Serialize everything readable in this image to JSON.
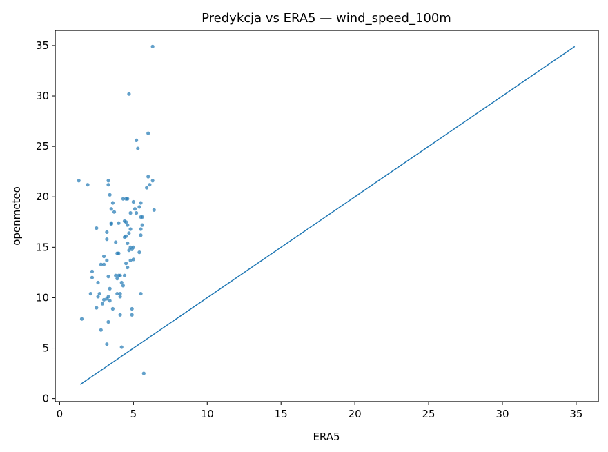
{
  "chart_data": {
    "type": "scatter",
    "title": "Predykcja vs ERA5 — wind_speed_100m",
    "xlabel": "ERA5",
    "ylabel": "openmeteo",
    "xlim": [
      -0.3,
      36.5
    ],
    "ylim": [
      -0.3,
      36.5
    ],
    "xticks": [
      0,
      5,
      10,
      15,
      20,
      25,
      30,
      35
    ],
    "yticks": [
      0,
      5,
      10,
      15,
      20,
      25,
      30,
      35
    ],
    "grid": false,
    "point_color": "#1f77b4",
    "line_color": "#1f77b4",
    "reference_line": {
      "x": [
        1.4,
        34.9
      ],
      "y": [
        1.4,
        34.9
      ]
    },
    "points": [
      [
        6.3,
        34.9
      ],
      [
        4.7,
        30.2
      ],
      [
        6.0,
        26.3
      ],
      [
        5.2,
        25.6
      ],
      [
        5.3,
        24.8
      ],
      [
        6.0,
        22.0
      ],
      [
        6.3,
        21.6
      ],
      [
        6.1,
        21.2
      ],
      [
        5.9,
        20.9
      ],
      [
        1.3,
        21.6
      ],
      [
        1.9,
        21.2
      ],
      [
        3.3,
        21.6
      ],
      [
        3.3,
        21.2
      ],
      [
        3.4,
        20.2
      ],
      [
        4.3,
        19.8
      ],
      [
        4.5,
        19.8
      ],
      [
        4.6,
        19.8
      ],
      [
        5.0,
        19.5
      ],
      [
        5.5,
        19.4
      ],
      [
        5.4,
        19.0
      ],
      [
        3.6,
        19.4
      ],
      [
        3.5,
        18.8
      ],
      [
        3.7,
        18.5
      ],
      [
        4.8,
        18.4
      ],
      [
        5.1,
        18.8
      ],
      [
        5.2,
        18.4
      ],
      [
        5.6,
        18.0
      ],
      [
        5.5,
        18.0
      ],
      [
        6.4,
        18.7
      ],
      [
        3.5,
        17.4
      ],
      [
        3.5,
        17.3
      ],
      [
        4.0,
        17.4
      ],
      [
        4.4,
        17.6
      ],
      [
        4.5,
        17.5
      ],
      [
        4.6,
        17.2
      ],
      [
        5.6,
        17.2
      ],
      [
        5.5,
        16.8
      ],
      [
        2.5,
        16.9
      ],
      [
        3.2,
        16.5
      ],
      [
        4.8,
        16.8
      ],
      [
        4.7,
        16.4
      ],
      [
        4.5,
        16.1
      ],
      [
        4.4,
        16.0
      ],
      [
        5.5,
        16.2
      ],
      [
        3.2,
        15.8
      ],
      [
        3.8,
        15.5
      ],
      [
        4.6,
        15.4
      ],
      [
        4.8,
        15.0
      ],
      [
        5.0,
        15.0
      ],
      [
        4.9,
        14.8
      ],
      [
        4.7,
        14.7
      ],
      [
        3.9,
        14.4
      ],
      [
        4.0,
        14.4
      ],
      [
        5.4,
        14.5
      ],
      [
        3.0,
        14.1
      ],
      [
        3.2,
        13.7
      ],
      [
        2.8,
        13.3
      ],
      [
        3.0,
        13.3
      ],
      [
        4.5,
        13.4
      ],
      [
        4.8,
        13.7
      ],
      [
        5.0,
        13.8
      ],
      [
        4.6,
        13.0
      ],
      [
        2.2,
        12.6
      ],
      [
        2.2,
        12.0
      ],
      [
        3.3,
        12.1
      ],
      [
        3.8,
        12.2
      ],
      [
        4.0,
        12.2
      ],
      [
        4.1,
        12.2
      ],
      [
        3.9,
        11.9
      ],
      [
        4.4,
        12.2
      ],
      [
        2.6,
        11.5
      ],
      [
        4.2,
        11.5
      ],
      [
        4.3,
        11.2
      ],
      [
        3.4,
        10.9
      ],
      [
        2.1,
        10.4
      ],
      [
        2.6,
        10.1
      ],
      [
        2.7,
        10.4
      ],
      [
        3.3,
        10.1
      ],
      [
        3.2,
        9.9
      ],
      [
        3.0,
        9.8
      ],
      [
        3.4,
        9.7
      ],
      [
        3.9,
        10.4
      ],
      [
        4.1,
        10.4
      ],
      [
        4.1,
        10.1
      ],
      [
        5.5,
        10.4
      ],
      [
        2.9,
        9.4
      ],
      [
        2.5,
        9.0
      ],
      [
        3.6,
        8.9
      ],
      [
        4.9,
        8.9
      ],
      [
        4.1,
        8.3
      ],
      [
        4.9,
        8.3
      ],
      [
        1.5,
        7.9
      ],
      [
        3.3,
        7.6
      ],
      [
        2.8,
        6.8
      ],
      [
        3.2,
        5.4
      ],
      [
        4.2,
        5.1
      ],
      [
        5.7,
        2.5
      ]
    ]
  }
}
